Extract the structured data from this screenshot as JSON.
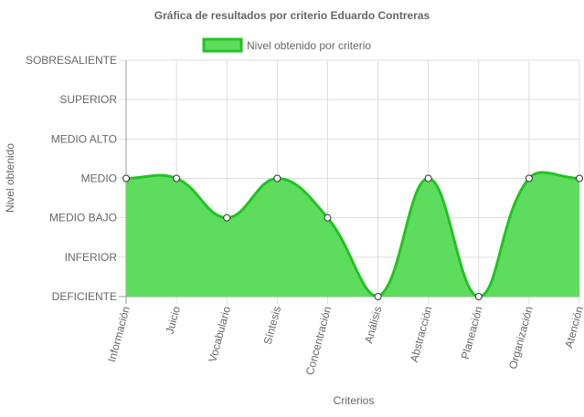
{
  "chart_data": {
    "type": "area",
    "title": "Gráfica de resultados por criterio Eduardo Contreras",
    "xlabel": "Criterios",
    "ylabel": "Nivel obtenido",
    "categories": [
      "Información",
      "Juicio",
      "Vocabulario",
      "Síntesis",
      "Concentración",
      "Análisis",
      "Abstracción",
      "Planeación",
      "Organización",
      "Atención"
    ],
    "y_levels": [
      "DEFICIENTE",
      "INFERIOR",
      "MEDIO BAJO",
      "MEDIO",
      "MEDIO ALTO",
      "SUPERIOR",
      "SOBRESALIENTE"
    ],
    "ylim": [
      0,
      6
    ],
    "series": [
      {
        "name": "Nivel obtenido por criterio",
        "values": [
          3,
          3,
          2,
          3,
          2,
          0,
          3,
          0,
          3,
          3
        ]
      }
    ],
    "colors": {
      "line": "#22c322",
      "fill": "#5edc5e",
      "grid": "#dddddd",
      "axis": "#999999",
      "point_fill": "#ffffff",
      "point_stroke": "#333333"
    },
    "grid": true,
    "legend_position": "top"
  }
}
